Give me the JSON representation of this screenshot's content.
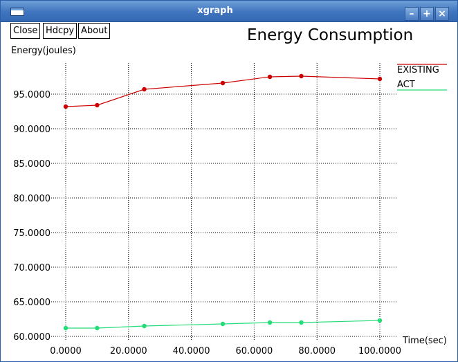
{
  "window": {
    "title": "xgraph",
    "controls": {
      "minimize": "–",
      "maximize": "+",
      "close": "×"
    }
  },
  "toolbar": {
    "close_label": "Close",
    "hdcpy_label": "Hdcpy",
    "about_label": "About"
  },
  "colors": {
    "titlebar": "#3f74be",
    "existing": "#cc0000",
    "act": "#22dd77",
    "grid": "#000000"
  },
  "chart_data": {
    "type": "line",
    "title": "Energy Consumption ",
    "ylabel": "Energy(joules)",
    "xlabel": "Time(sec)",
    "xlim": [
      -6,
      106
    ],
    "ylim": [
      60,
      99
    ],
    "xticks": [
      0,
      20,
      40,
      60,
      80,
      100
    ],
    "xtick_labels": [
      "0.0000",
      "20.0000",
      "40.0000",
      "60.0000",
      "80.0000",
      "100.0000"
    ],
    "yticks": [
      60,
      65,
      70,
      75,
      80,
      85,
      90,
      95
    ],
    "ytick_labels": [
      "60.0000",
      "65.0000",
      "70.0000",
      "75.0000",
      "80.0000",
      "85.0000",
      "90.0000",
      "95.0000"
    ],
    "grid": true,
    "legend_position": "top-right",
    "series": [
      {
        "name": "EXISTING",
        "color": "#cc0000",
        "x": [
          0,
          10,
          25,
          50,
          65,
          75,
          100
        ],
        "y": [
          93.2,
          93.4,
          95.7,
          96.6,
          97.5,
          97.6,
          97.2
        ]
      },
      {
        "name": "ACT",
        "color": "#22dd77",
        "x": [
          0,
          10,
          25,
          50,
          65,
          75,
          100
        ],
        "y": [
          61.2,
          61.2,
          61.5,
          61.8,
          62.0,
          62.0,
          62.3
        ]
      }
    ]
  }
}
